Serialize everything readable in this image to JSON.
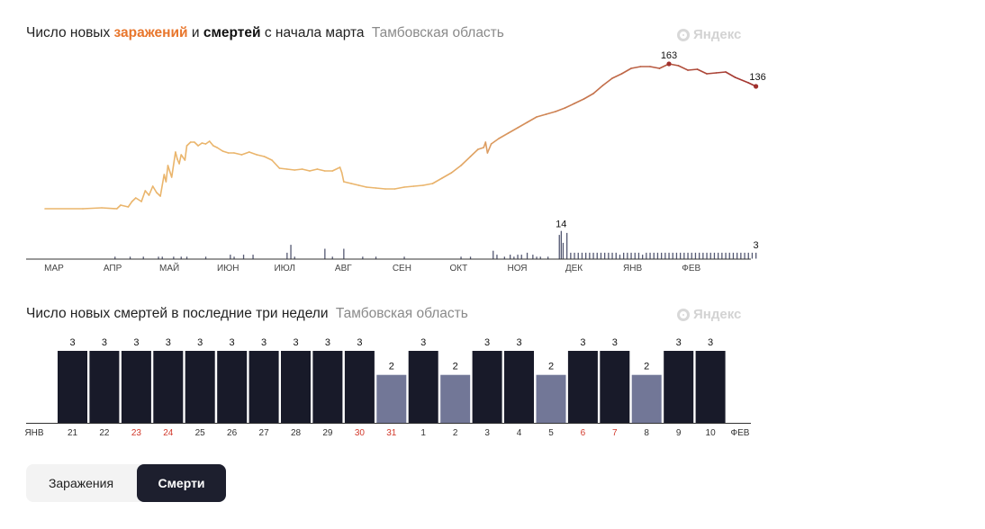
{
  "chart1": {
    "title_part1": "Число новых ",
    "title_infections": "заражений",
    "title_part2": " и ",
    "title_deaths": "смертей",
    "title_part3": " с начала марта",
    "region": "Тамбовская область",
    "watermark": "Яндекс"
  },
  "chart2": {
    "title": "Число новых смертей в последние три недели",
    "region": "Тамбовская область",
    "watermark": "Яндекс"
  },
  "toggle": {
    "infections_label": "Заражения",
    "deaths_label": "Смерти",
    "selected": "deaths"
  },
  "colors": {
    "infect_early": "#eab56c",
    "infect_late": "#a0302d",
    "death_bar": "#545872",
    "death_bar_3": "#181a29",
    "death_bar_2": "#727797",
    "weekend_label": "#d2392b",
    "accent": "#e8762c"
  },
  "chart_data": [
    {
      "type": "line",
      "title": "Число новых заражений и смертей с начала марта",
      "x_tick_labels": [
        "МАР",
        "АПР",
        "МАЙ",
        "ИЮН",
        "ИЮЛ",
        "АВГ",
        "СЕН",
        "ОКТ",
        "НОЯ",
        "ДЕК",
        "ЯНВ",
        "ФЕВ"
      ],
      "series": [
        {
          "kind": "line",
          "points": [
            [
              0,
              0
            ],
            [
              20,
              0
            ],
            [
              30,
              1
            ],
            [
              38,
              0
            ],
            [
              40,
              4
            ],
            [
              44,
              2
            ],
            [
              46,
              8
            ],
            [
              48,
              12
            ],
            [
              51,
              8
            ],
            [
              53,
              20
            ],
            [
              55,
              15
            ],
            [
              57,
              25
            ],
            [
              59,
              18
            ],
            [
              61,
              14
            ],
            [
              63,
              38
            ],
            [
              64,
              30
            ],
            [
              65,
              48
            ],
            [
              67,
              35
            ],
            [
              69,
              63
            ],
            [
              70,
              55
            ],
            [
              71,
              50
            ],
            [
              72,
              60
            ],
            [
              74,
              54
            ],
            [
              75,
              70
            ],
            [
              77,
              74
            ],
            [
              79,
              74
            ],
            [
              81,
              70
            ],
            [
              83,
              73
            ],
            [
              85,
              72
            ],
            [
              87,
              75
            ],
            [
              89,
              70
            ],
            [
              91,
              68
            ],
            [
              94,
              64
            ],
            [
              97,
              62
            ],
            [
              100,
              62
            ],
            [
              104,
              60
            ],
            [
              108,
              63
            ],
            [
              112,
              60
            ],
            [
              116,
              58
            ],
            [
              120,
              54
            ],
            [
              124,
              45
            ],
            [
              128,
              44
            ],
            [
              132,
              43
            ],
            [
              136,
              44
            ],
            [
              140,
              42
            ],
            [
              144,
              44
            ],
            [
              148,
              42
            ],
            [
              152,
              42
            ],
            [
              156,
              46
            ],
            [
              157,
              40
            ],
            [
              158,
              30
            ],
            [
              162,
              28
            ],
            [
              166,
              26
            ],
            [
              170,
              24
            ],
            [
              175,
              23
            ],
            [
              180,
              22
            ],
            [
              185,
              22
            ],
            [
              190,
              24
            ],
            [
              195,
              25
            ],
            [
              200,
              26
            ],
            [
              205,
              28
            ],
            [
              210,
              34
            ],
            [
              215,
              40
            ],
            [
              220,
              48
            ],
            [
              225,
              58
            ],
            [
              229,
              66
            ],
            [
              232,
              68
            ],
            [
              233,
              74
            ],
            [
              234,
              62
            ],
            [
              236,
              72
            ],
            [
              240,
              78
            ],
            [
              245,
              84
            ],
            [
              250,
              90
            ],
            [
              255,
              96
            ],
            [
              260,
              102
            ],
            [
              265,
              105
            ],
            [
              270,
              108
            ],
            [
              275,
              112
            ],
            [
              280,
              117
            ],
            [
              285,
              122
            ],
            [
              290,
              128
            ],
            [
              295,
              137
            ],
            [
              300,
              145
            ],
            [
              305,
              150
            ],
            [
              310,
              156
            ],
            [
              315,
              158
            ],
            [
              320,
              158
            ],
            [
              325,
              156
            ],
            [
              330,
              161
            ],
            [
              335,
              159
            ],
            [
              340,
              154
            ],
            [
              345,
              155
            ],
            [
              350,
              150
            ],
            [
              355,
              151
            ],
            [
              360,
              152
            ],
            [
              365,
              146
            ],
            [
              372,
              140
            ],
            [
              376,
              136
            ]
          ]
        },
        {
          "kind": "bar",
          "name": "deaths",
          "points": [
            [
              37,
              1
            ],
            [
              45,
              1
            ],
            [
              52,
              1
            ],
            [
              60,
              1
            ],
            [
              62,
              1
            ],
            [
              68,
              1
            ],
            [
              72,
              1
            ],
            [
              75,
              1
            ],
            [
              85,
              1
            ],
            [
              98,
              2
            ],
            [
              100,
              1
            ],
            [
              105,
              2
            ],
            [
              110,
              2
            ],
            [
              128,
              3
            ],
            [
              130,
              7
            ],
            [
              132,
              1
            ],
            [
              148,
              5
            ],
            [
              152,
              1
            ],
            [
              158,
              5
            ],
            [
              168,
              1
            ],
            [
              175,
              1
            ],
            [
              190,
              1
            ],
            [
              220,
              1
            ],
            [
              225,
              1
            ],
            [
              237,
              4
            ],
            [
              239,
              2
            ],
            [
              243,
              1
            ],
            [
              246,
              2
            ],
            [
              248,
              1
            ],
            [
              250,
              2
            ],
            [
              252,
              2
            ],
            [
              255,
              3
            ],
            [
              258,
              2
            ],
            [
              260,
              1
            ],
            [
              262,
              1
            ],
            [
              266,
              1
            ],
            [
              272,
              12
            ],
            [
              273,
              14
            ],
            [
              274,
              8
            ],
            [
              276,
              13
            ],
            [
              278,
              3
            ],
            [
              280,
              3
            ],
            [
              282,
              3
            ],
            [
              284,
              3
            ],
            [
              286,
              3
            ],
            [
              288,
              3
            ],
            [
              290,
              3
            ],
            [
              292,
              3
            ],
            [
              294,
              3
            ],
            [
              296,
              3
            ],
            [
              298,
              3
            ],
            [
              300,
              3
            ],
            [
              302,
              3
            ],
            [
              304,
              2
            ],
            [
              306,
              3
            ],
            [
              308,
              3
            ],
            [
              310,
              3
            ],
            [
              312,
              3
            ],
            [
              314,
              3
            ],
            [
              316,
              2
            ],
            [
              318,
              3
            ],
            [
              320,
              3
            ],
            [
              322,
              3
            ],
            [
              324,
              3
            ],
            [
              326,
              3
            ],
            [
              328,
              3
            ],
            [
              330,
              3
            ],
            [
              332,
              3
            ],
            [
              334,
              3
            ],
            [
              336,
              3
            ],
            [
              338,
              3
            ],
            [
              340,
              3
            ],
            [
              342,
              3
            ],
            [
              344,
              3
            ],
            [
              346,
              3
            ],
            [
              348,
              3
            ],
            [
              350,
              3
            ],
            [
              352,
              3
            ],
            [
              354,
              3
            ],
            [
              356,
              3
            ],
            [
              358,
              3
            ],
            [
              360,
              3
            ],
            [
              362,
              3
            ],
            [
              364,
              3
            ],
            [
              366,
              3
            ],
            [
              368,
              3
            ],
            [
              370,
              3
            ],
            [
              372,
              3
            ],
            [
              374,
              3
            ],
            [
              376,
              3
            ]
          ]
        }
      ],
      "annotations": [
        {
          "label": "163"
        },
        {
          "label": "136"
        },
        {
          "label": "14"
        },
        {
          "label": "3"
        }
      ]
    },
    {
      "type": "bar",
      "title": "Число новых смертей в последние три недели",
      "categories": [
        "21",
        "22",
        "23",
        "24",
        "25",
        "26",
        "27",
        "28",
        "29",
        "30",
        "31",
        "1",
        "2",
        "3",
        "4",
        "5",
        "6",
        "7",
        "8",
        "9",
        "10"
      ],
      "values": [
        3,
        3,
        3,
        3,
        3,
        3,
        3,
        3,
        3,
        3,
        2,
        3,
        2,
        3,
        3,
        2,
        3,
        3,
        2,
        3,
        3
      ],
      "weekend": [
        false,
        false,
        true,
        true,
        false,
        false,
        false,
        false,
        false,
        true,
        true,
        false,
        false,
        false,
        false,
        false,
        true,
        true,
        false,
        false,
        false
      ],
      "month_start_label": "ЯНВ",
      "month_end_label": "ФЕВ",
      "ylim": [
        0,
        3
      ]
    }
  ]
}
